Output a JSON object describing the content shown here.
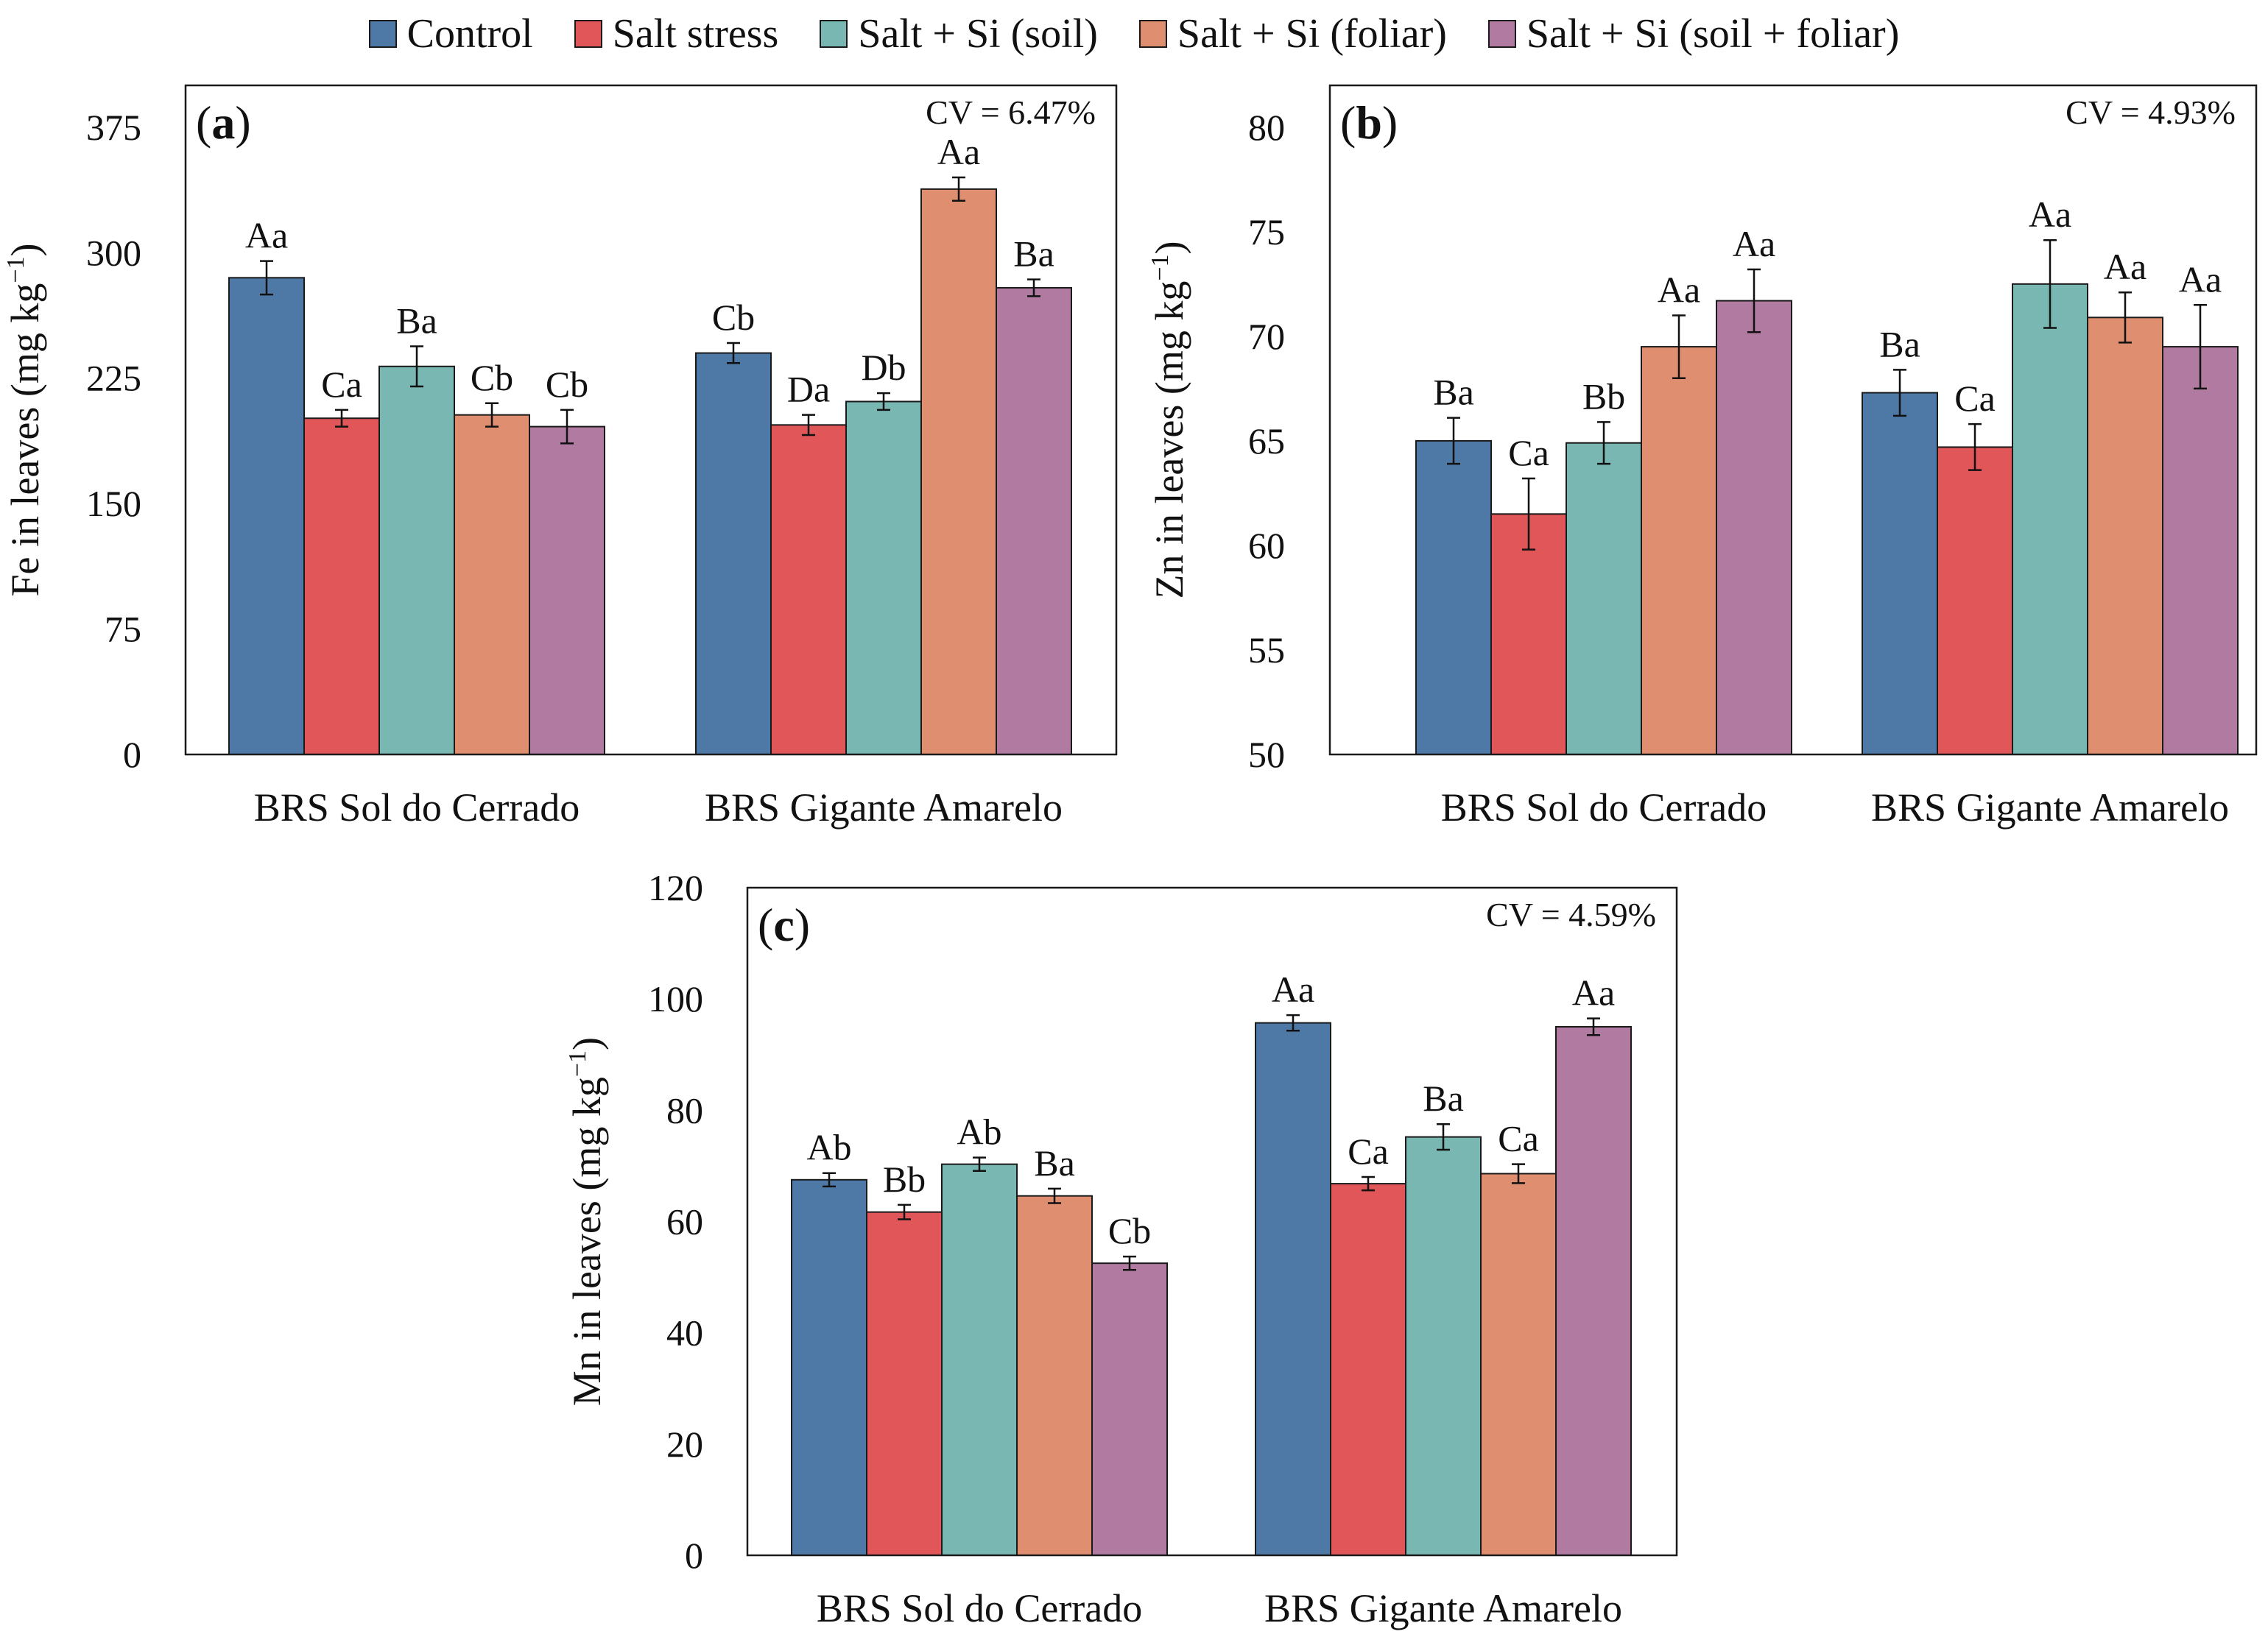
{
  "legend": [
    {
      "label": "Control",
      "color": "#4e79a7"
    },
    {
      "label": "Salt stress",
      "color": "#e15659"
    },
    {
      "label": "Salt + Si (soil)",
      "color": "#79b7b2"
    },
    {
      "label": "Salt + Si (foliar)",
      "color": "#e08e70"
    },
    {
      "label": "Salt + Si (soil + foliar)",
      "color": "#b07aa1"
    }
  ],
  "chart_data": [
    {
      "type": "bar",
      "panel_label": "a",
      "cv_text": "CV = 6.47%",
      "ylabel_text": "Fe in leaves (mg kg",
      "ylabel_sup": "−1",
      "ylabel_end": ")",
      "ylim": [
        0,
        400
      ],
      "yticks": [
        0,
        75,
        150,
        225,
        300,
        375
      ],
      "categories": [
        "BRS Sol do Cerrado",
        "BRS Gigante Amarelo"
      ],
      "series": [
        {
          "name": "Control",
          "values": [
            285,
            240
          ],
          "errors": [
            10,
            6
          ],
          "letters": [
            "Aa",
            "Cb"
          ]
        },
        {
          "name": "Salt stress",
          "values": [
            201,
            197
          ],
          "errors": [
            5,
            6
          ],
          "letters": [
            "Ca",
            "Da"
          ]
        },
        {
          "name": "Salt + Si (soil)",
          "values": [
            232,
            211
          ],
          "errors": [
            12,
            5
          ],
          "letters": [
            "Ba",
            "Db"
          ]
        },
        {
          "name": "Salt + Si (foliar)",
          "values": [
            203,
            338
          ],
          "errors": [
            7,
            7
          ],
          "letters": [
            "Cb",
            "Aa"
          ]
        },
        {
          "name": "Salt + Si (soil + foliar)",
          "values": [
            196,
            279
          ],
          "errors": [
            10,
            5
          ],
          "letters": [
            "Cb",
            "Ba"
          ]
        }
      ]
    },
    {
      "type": "bar",
      "panel_label": "b",
      "cv_text": "CV = 4.93%",
      "ylabel_text": "Zn in leaves (mg kg",
      "ylabel_sup": "−1",
      "ylabel_end": ")",
      "ylim": [
        50,
        82
      ],
      "yticks": [
        50,
        55,
        60,
        65,
        70,
        75,
        80
      ],
      "categories": [
        "BRS Sol do Cerrado",
        "BRS Gigante Amarelo"
      ],
      "series": [
        {
          "name": "Control",
          "values": [
            65.0,
            67.3
          ],
          "errors": [
            1.1,
            1.1
          ],
          "letters": [
            "Ba",
            "Ba"
          ]
        },
        {
          "name": "Salt stress",
          "values": [
            61.5,
            64.7
          ],
          "errors": [
            1.7,
            1.1
          ],
          "letters": [
            "Ca",
            "Ca"
          ]
        },
        {
          "name": "Salt + Si (soil)",
          "values": [
            64.9,
            72.5
          ],
          "errors": [
            1.0,
            2.1
          ],
          "letters": [
            "Bb",
            "Aa"
          ]
        },
        {
          "name": "Salt + Si (foliar)",
          "values": [
            69.5,
            70.9
          ],
          "errors": [
            1.5,
            1.2
          ],
          "letters": [
            "Aa",
            "Aa"
          ]
        },
        {
          "name": "Salt + Si (soil + foliar)",
          "values": [
            71.7,
            69.5
          ],
          "errors": [
            1.5,
            2.0
          ],
          "letters": [
            "Aa",
            "Aa"
          ]
        }
      ]
    },
    {
      "type": "bar",
      "panel_label": "c",
      "cv_text": "CV = 4.59%",
      "ylabel_text": "Mn in leaves (mg kg",
      "ylabel_sup": "−1",
      "ylabel_end": ")",
      "ylim": [
        0,
        120
      ],
      "yticks": [
        0,
        20,
        40,
        60,
        80,
        100,
        120
      ],
      "categories": [
        "BRS Sol do Cerrado",
        "BRS Gigante Amarelo"
      ],
      "series": [
        {
          "name": "Control",
          "values": [
            67.5,
            95.7
          ],
          "errors": [
            1.2,
            1.4
          ],
          "letters": [
            "Ab",
            "Aa"
          ]
        },
        {
          "name": "Salt stress",
          "values": [
            61.7,
            66.8
          ],
          "errors": [
            1.3,
            1.2
          ],
          "letters": [
            "Bb",
            "Ca"
          ]
        },
        {
          "name": "Salt + Si (soil)",
          "values": [
            70.3,
            75.2
          ],
          "errors": [
            1.2,
            2.3
          ],
          "letters": [
            "Ab",
            "Ba"
          ]
        },
        {
          "name": "Salt + Si (foliar)",
          "values": [
            64.6,
            68.6
          ],
          "errors": [
            1.3,
            1.7
          ],
          "letters": [
            "Ba",
            "Ca"
          ]
        },
        {
          "name": "Salt + Si (soil + foliar)",
          "values": [
            52.5,
            95.0
          ],
          "errors": [
            1.2,
            1.5
          ],
          "letters": [
            "Cb",
            "Aa"
          ]
        }
      ]
    }
  ]
}
